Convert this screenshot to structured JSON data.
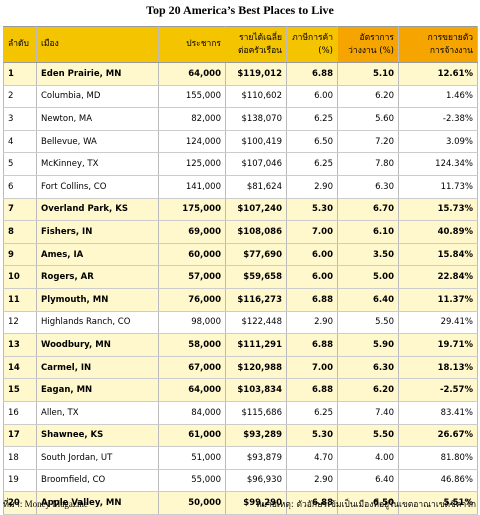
{
  "title": "Top 20 America’s Best Places to Live",
  "columns": [
    [
      "ลำดับ"
    ],
    [
      "เมือง"
    ],
    [
      "ประชากร"
    ],
    [
      "รายได้เฉลี่ย",
      "ต่อครัวเรือน"
    ],
    [
      "ภาษีการค้า",
      "(%)"
    ],
    [
      "อัตราการ",
      "ว่างงาน (%)"
    ],
    [
      "การขยายตัว",
      "การจ้างงาน"
    ]
  ],
  "rows": [
    {
      "bold": true,
      "cells": [
        "1",
        "Eden Prairie, MN",
        "64,000",
        "$119,012",
        "6.88",
        "5.10",
        "12.61%"
      ]
    },
    {
      "bold": false,
      "cells": [
        "2",
        "Columbia, MD",
        "155,000",
        "$110,602",
        "6.00",
        "6.20",
        "1.46%"
      ]
    },
    {
      "bold": false,
      "cells": [
        "3",
        "Newton, MA",
        "82,000",
        "$138,070",
        "6.25",
        "5.60",
        "-2.38%"
      ]
    },
    {
      "bold": false,
      "cells": [
        "4",
        "Bellevue, WA",
        "124,000",
        "$100,419",
        "6.50",
        "7.20",
        "3.09%"
      ]
    },
    {
      "bold": false,
      "cells": [
        "5",
        "McKinney, TX",
        "125,000",
        "$107,046",
        "6.25",
        "7.80",
        "124.34%"
      ]
    },
    {
      "bold": false,
      "cells": [
        "6",
        "Fort Collins, CO",
        "141,000",
        "$81,624",
        "2.90",
        "6.30",
        "11.73%"
      ]
    },
    {
      "bold": true,
      "cells": [
        "7",
        "Overland Park, KS",
        "175,000",
        "$107,240",
        "5.30",
        "6.70",
        "15.73%"
      ]
    },
    {
      "bold": true,
      "cells": [
        "8",
        "Fishers, IN",
        "69,000",
        "$108,086",
        "7.00",
        "6.10",
        "40.89%"
      ]
    },
    {
      "bold": true,
      "cells": [
        "9",
        "Ames, IA",
        "60,000",
        "$77,690",
        "6.00",
        "3.50",
        "15.84%"
      ]
    },
    {
      "bold": true,
      "cells": [
        "10",
        "Rogers, AR",
        "57,000",
        "$59,658",
        "6.00",
        "5.00",
        "22.84%"
      ]
    },
    {
      "bold": true,
      "cells": [
        "11",
        "Plymouth, MN",
        "76,000",
        "$116,273",
        "6.88",
        "6.40",
        "11.37%"
      ]
    },
    {
      "bold": false,
      "cells": [
        "12",
        "Highlands Ranch, CO",
        "98,000",
        "$122,448",
        "2.90",
        "5.50",
        "29.41%"
      ]
    },
    {
      "bold": true,
      "cells": [
        "13",
        "Woodbury, MN",
        "58,000",
        "$111,291",
        "6.88",
        "5.90",
        "19.71%"
      ]
    },
    {
      "bold": true,
      "cells": [
        "14",
        "Carmel, IN",
        "67,000",
        "$120,988",
        "7.00",
        "6.30",
        "18.13%"
      ]
    },
    {
      "bold": true,
      "cells": [
        "15",
        "Eagan, MN",
        "64,000",
        "$103,834",
        "6.88",
        "6.20",
        "-2.57%"
      ]
    },
    {
      "bold": false,
      "cells": [
        "16",
        "Allen, TX",
        "84,000",
        "$115,686",
        "6.25",
        "7.40",
        "83.41%"
      ]
    },
    {
      "bold": true,
      "cells": [
        "17",
        "Shawnee, KS",
        "61,000",
        "$93,289",
        "5.30",
        "5.50",
        "26.67%"
      ]
    },
    {
      "bold": false,
      "cells": [
        "18",
        "South Jordan, UT",
        "51,000",
        "$93,879",
        "4.70",
        "4.00",
        "81.80%"
      ]
    },
    {
      "bold": false,
      "cells": [
        "19",
        "Broomfield, CO",
        "55,000",
        "$96,930",
        "2.90",
        "6.40",
        "46.86%"
      ]
    },
    {
      "bold": true,
      "cells": [
        "20",
        "Apple Valley, MN",
        "50,000",
        "$99,290",
        "6.88",
        "6.50",
        "5.51%"
      ]
    }
  ],
  "source": "ที่มา:  Money Magazine",
  "note": "หมายเหตุ:  ตัวอักษรเข้มเป็นเมืองที่อยู่ในเขตอาณาเขตชิคาโก"
}
